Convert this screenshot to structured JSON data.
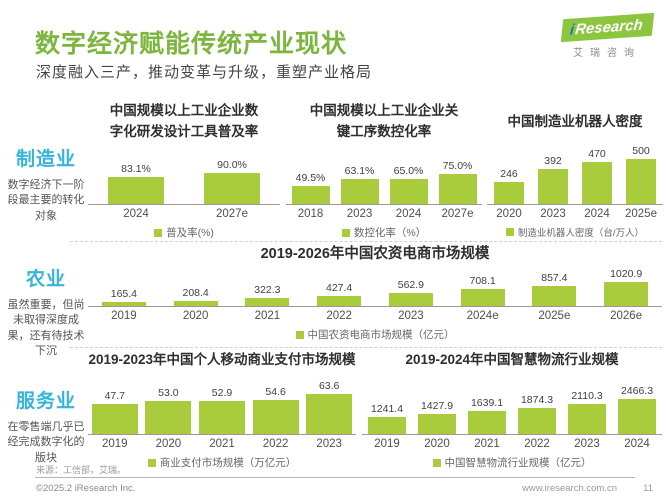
{
  "page": {
    "title": "数字经济赋能传统产业现状",
    "subtitle": "深度融入三产，推动变革与升级，重塑产业格局",
    "logo": {
      "i": "i",
      "brand": "Research",
      "cn": "艾瑞咨询"
    },
    "footer": {
      "source": "来源：工信部，艾瑞。",
      "copyright": "©2025.2 iResearch Inc.",
      "website": "www.iresearch.com.cn",
      "page_number": "11"
    },
    "colors": {
      "accent_green": "#7CB63D",
      "bar_green": "#A9CC3D",
      "sector_cyan": "#35B4DC"
    }
  },
  "sectors": [
    {
      "name": "制造业",
      "desc": "数字经济下一阶段最主要的转化对象"
    },
    {
      "name": "农业",
      "desc": "虽然重要，但尚未取得深度成果，还有待技术下沉"
    },
    {
      "name": "服务业",
      "desc": "在零售端几乎已经完成数字化的版块"
    }
  ],
  "chart_data": [
    {
      "type": "bar",
      "title": "中国规模以上工业企业数字化研发设计工具普及率",
      "title_lines": [
        "中国规模以上工业企业数",
        "字化研发设计工具普及率"
      ],
      "categories": [
        "2024",
        "2027e"
      ],
      "values": [
        83.1,
        90.0
      ],
      "value_labels": [
        "83.1%",
        "90.0%"
      ],
      "legend": "普及率(%)",
      "ylabel": "",
      "xlabel": "",
      "ylim": [
        40,
        110
      ],
      "grid": false,
      "legend_position": "bottom"
    },
    {
      "type": "bar",
      "title": "中国规模以上工业企业关键工序数控化率",
      "title_lines": [
        "中国规模以上工业企业关",
        "键工序数控化率"
      ],
      "categories": [
        "2018",
        "2023",
        "2024",
        "2027e"
      ],
      "values": [
        49.5,
        63.1,
        65.0,
        75.0
      ],
      "value_labels": [
        "49.5%",
        "63.1%",
        "65.0%",
        "75.0%"
      ],
      "legend": "数控化率（%）",
      "ylabel": "",
      "xlabel": "",
      "ylim": [
        10,
        105
      ],
      "grid": false,
      "legend_position": "bottom"
    },
    {
      "type": "bar",
      "title": "中国制造业机器人密度",
      "title_lines": [
        "中国制造业机器人密度"
      ],
      "categories": [
        "2020",
        "2023",
        "2024",
        "2025e"
      ],
      "values": [
        246,
        392,
        470,
        500
      ],
      "value_labels": [
        "246",
        "392",
        "470",
        "500"
      ],
      "legend": "制造业机器人密度（台/万人）",
      "ylabel": "",
      "xlabel": "",
      "ylim": [
        0,
        560
      ],
      "grid": false,
      "legend_position": "bottom"
    },
    {
      "type": "bar",
      "title": "2019-2026年中国农资电商市场规模",
      "title_lines": [
        "2019-2026年中国农资电商市场规模"
      ],
      "categories": [
        "2019",
        "2020",
        "2021",
        "2022",
        "2023",
        "2024e",
        "2025e",
        "2026e"
      ],
      "values": [
        165.4,
        208.4,
        322.3,
        427.4,
        562.9,
        708.1,
        857.4,
        1020.9
      ],
      "value_labels": [
        "165.4",
        "208.4",
        "322.3",
        "427.4",
        "562.9",
        "708.1",
        "857.4",
        "1020.9"
      ],
      "legend": "中国农资电商市场规模（亿元）",
      "ylabel": "",
      "xlabel": "",
      "ylim": [
        0,
        1100
      ],
      "grid": false,
      "legend_position": "bottom"
    },
    {
      "type": "bar",
      "title": "2019-2023年中国个人移动商业支付市场规模",
      "title_lines": [
        "2019-2023年中国个人移动商业支付市场规模"
      ],
      "categories": [
        "2019",
        "2020",
        "2021",
        "2022",
        "2023"
      ],
      "values": [
        47.7,
        53.0,
        52.9,
        54.6,
        63.6
      ],
      "value_labels": [
        "47.7",
        "53.0",
        "52.9",
        "54.6",
        "63.6"
      ],
      "legend": "商业支付市场规模（万亿元）",
      "ylabel": "",
      "xlabel": "",
      "ylim": [
        0,
        70
      ],
      "grid": false,
      "legend_position": "bottom"
    },
    {
      "type": "bar",
      "title": "2019-2024年中国智慧物流行业规模",
      "title_lines": [
        "2019-2024年中国智慧物流行业规模"
      ],
      "categories": [
        "2019",
        "2020",
        "2021",
        "2022",
        "2023",
        "2024"
      ],
      "values": [
        1241.4,
        1427.9,
        1639.1,
        1874.3,
        2110.3,
        2466.3
      ],
      "value_labels": [
        "1241.4",
        "1427.9",
        "1639.1",
        "1874.3",
        "2110.3",
        "2466.3"
      ],
      "legend": "中国智慧物流行业规模（亿元）",
      "ylabel": "",
      "xlabel": "",
      "ylim": [
        0,
        2700
      ],
      "grid": false,
      "legend_position": "bottom"
    }
  ]
}
